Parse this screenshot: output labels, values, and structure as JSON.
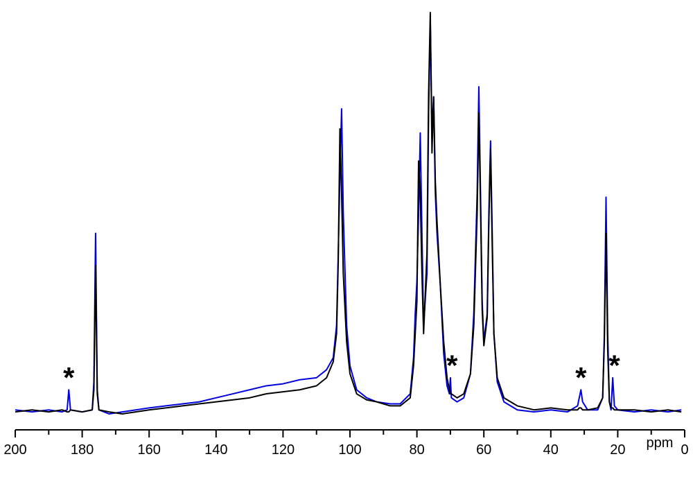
{
  "chart_data": {
    "type": "line",
    "x_label": "ppm",
    "xlim": [
      200,
      0
    ],
    "xticks": [
      200,
      180,
      160,
      140,
      120,
      100,
      80,
      60,
      40,
      20,
      0
    ],
    "xminorticks": [
      190,
      170,
      150,
      130,
      110,
      90,
      70,
      50,
      30,
      10
    ],
    "ylim": [
      0,
      100
    ],
    "x": [
      200,
      195,
      190,
      186,
      184.5,
      184,
      183.5,
      180,
      177,
      176.5,
      176,
      175.5,
      175,
      172,
      168,
      164,
      160,
      155,
      150,
      145,
      140,
      135,
      130,
      125,
      120,
      115,
      110,
      107,
      105,
      104,
      103.5,
      103,
      102.5,
      102,
      101,
      100,
      98,
      95,
      92,
      88,
      85,
      82,
      81,
      80.5,
      80,
      79.5,
      79,
      78.5,
      78,
      77,
      76.5,
      76,
      75.5,
      75,
      74.5,
      74,
      73,
      72,
      71,
      70.3,
      70,
      69.7,
      68,
      66,
      64,
      63,
      62,
      61.5,
      61,
      60.5,
      60,
      59,
      58.5,
      58,
      57.5,
      57,
      56,
      54,
      50,
      45,
      40,
      35,
      32,
      31.5,
      31,
      30.5,
      29,
      26,
      24.5,
      24,
      23.5,
      23,
      22.5,
      22,
      21.5,
      21,
      20,
      15,
      10,
      5,
      1
    ],
    "series": [
      {
        "color": "#0000e0",
        "values": [
          1,
          0.5,
          1,
          0.5,
          1,
          6,
          1,
          0.5,
          1,
          8,
          45,
          6,
          1,
          0,
          0.5,
          1,
          1.5,
          2,
          2.5,
          3,
          4,
          5,
          6,
          7,
          7.5,
          8.5,
          9,
          11,
          14,
          22,
          40,
          60,
          76,
          50,
          22,
          12,
          6,
          4,
          3,
          2.5,
          2.5,
          5,
          14,
          25,
          33,
          50,
          70,
          45,
          22,
          35,
          75,
          98,
          70,
          79,
          55,
          45,
          32,
          15,
          7,
          5,
          9,
          4,
          3,
          4,
          10,
          25,
          55,
          81.5,
          55,
          28,
          18,
          25,
          50,
          68,
          45,
          20,
          8,
          3,
          1,
          0.5,
          1,
          0.5,
          2,
          4,
          6,
          3,
          1,
          1,
          4,
          20,
          54,
          20,
          3,
          1,
          9,
          2,
          1,
          0.5,
          1,
          0.5,
          1
        ]
      },
      {
        "color": "#000000",
        "values": [
          0.5,
          1,
          0.5,
          1,
          0.5,
          0.5,
          1,
          0.5,
          1,
          6,
          37,
          5,
          1,
          0.5,
          0,
          0.5,
          1,
          1.5,
          2,
          2.5,
          3,
          3.5,
          4,
          5,
          5.5,
          6,
          7,
          9,
          13,
          20,
          38,
          71,
          55,
          35,
          18,
          10,
          5,
          3.5,
          3,
          2,
          2,
          4,
          12,
          20,
          28,
          63,
          55,
          35,
          20,
          40,
          80,
          100,
          65,
          79,
          58,
          48,
          32,
          18,
          9,
          6,
          5,
          5,
          4,
          5,
          10,
          22,
          50,
          75,
          52,
          26,
          17,
          24,
          48,
          66,
          42,
          20,
          9,
          4,
          2,
          1,
          1.5,
          1,
          1,
          1.5,
          1.5,
          1,
          1,
          1.5,
          4,
          18,
          45,
          16,
          3,
          1.5,
          1.5,
          1,
          1,
          1,
          0.5,
          1,
          0.5
        ]
      }
    ],
    "annotations": [
      {
        "text": "*",
        "x": 184,
        "y": 9
      },
      {
        "text": "*",
        "x": 69.5,
        "y": 12
      },
      {
        "text": "*",
        "x": 31,
        "y": 9
      },
      {
        "text": "*",
        "x": 21,
        "y": 12
      }
    ]
  }
}
